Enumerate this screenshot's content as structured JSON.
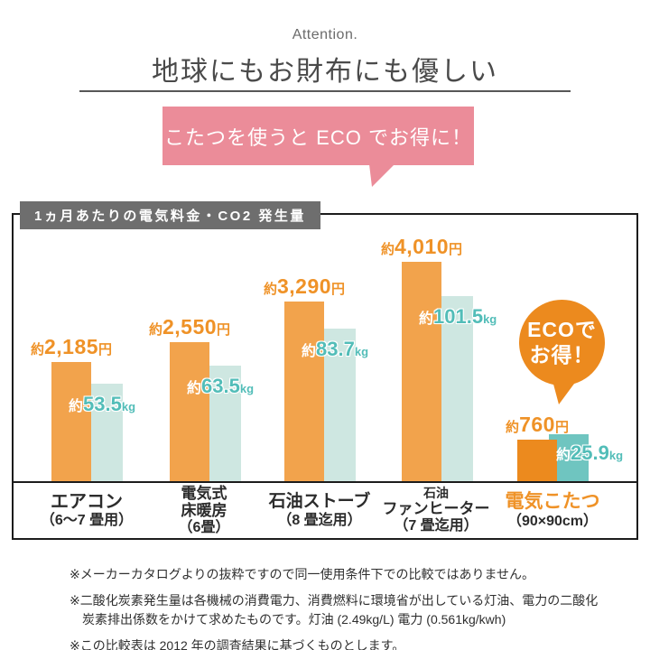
{
  "header": {
    "eyebrow": "Attention.",
    "title": "地球にもお財布にも優しい",
    "bubble_text": "こたつを使うと ECO でお得に！"
  },
  "chart_data": {
    "type": "bar",
    "title": "1ヵ月あたりの電気料金・CO2 発生量",
    "categories": [
      "エアコン（6～7 畳用）",
      "電気式床暖房（6畳）",
      "石油ストーブ（8 畳迄用）",
      "石油ファンヒーター（7 畳迄用）",
      "電気こたつ（90×90cm）"
    ],
    "series": [
      {
        "name": "1ヵ月あたりの電気料金",
        "unit": "円",
        "values": [
          2185,
          2550,
          3290,
          4010,
          760
        ],
        "labels": [
          "約2,185円",
          "約2,550円",
          "約3,290円",
          "約4,010円",
          "約760円"
        ],
        "color": "#f2a34c"
      },
      {
        "name": "1ヵ月あたりのCO2発生量",
        "unit": "kg",
        "values": [
          53.5,
          63.5,
          83.7,
          101.5,
          25.9
        ],
        "labels": [
          "約53.5kg",
          "約63.5kg",
          "約83.7kg",
          "約101.5kg",
          "約25.9kg"
        ],
        "color": "#cee7e1"
      }
    ],
    "value_axis": "none",
    "grid": false,
    "legend": "none",
    "annotation": "ECOでお得！",
    "highlighted_category": "電気こたつ（90×90cm）"
  },
  "badge": {
    "line1": "ECOで",
    "line2": "お得！"
  },
  "labels": {
    "approx": "約",
    "yen_unit": "円",
    "kg_unit": "kg"
  },
  "groups": [
    {
      "yen": "2,185",
      "kg": "53.5",
      "cat1": "エアコン",
      "cat2": "",
      "sub": "（6～7 畳用）"
    },
    {
      "yen": "2,550",
      "kg": "63.5",
      "cat1": "電気式",
      "cat2": "床暖房",
      "sub": "（6畳）"
    },
    {
      "yen": "3,290",
      "kg": "83.7",
      "cat1": "石油ストーブ",
      "cat2": "",
      "sub": "（8 畳迄用）"
    },
    {
      "yen": "4,010",
      "kg": "101.5",
      "cat1": "石油",
      "cat2": "ファンヒーター",
      "sub": "（7 畳迄用）"
    },
    {
      "yen": "760",
      "kg": "25.9",
      "cat1": "電気こたつ",
      "cat2": "",
      "sub": "（90×90cm）"
    }
  ],
  "notes": [
    "※メーカーカタログよりの抜粋ですので同一使用条件下での比較ではありません。",
    "※二酸化炭素発生量は各機械の消費電力、消費燃料に環境省が出している灯油、電力の二酸化炭素排出係数をかけて求めたものです。灯油 (2.49kg/L) 電力 (0.561kg/kwh)",
    "※この比較表は 2012 年の調査結果に基づくものとします。"
  ],
  "colors": {
    "orange_bar": "#f2a34c",
    "orange_deep": "#ec8a1e",
    "orange_text": "#ef9227",
    "teal_light": "#cee7e1",
    "teal_dark": "#6fc5c0",
    "teal_text": "#52bdb8",
    "pink": "#eb8c99",
    "gray_box": "#6e6e6e",
    "heading": "#4a4a4a",
    "text_dark": "#2f2f2f",
    "border_dark": "#1c1c1c"
  }
}
